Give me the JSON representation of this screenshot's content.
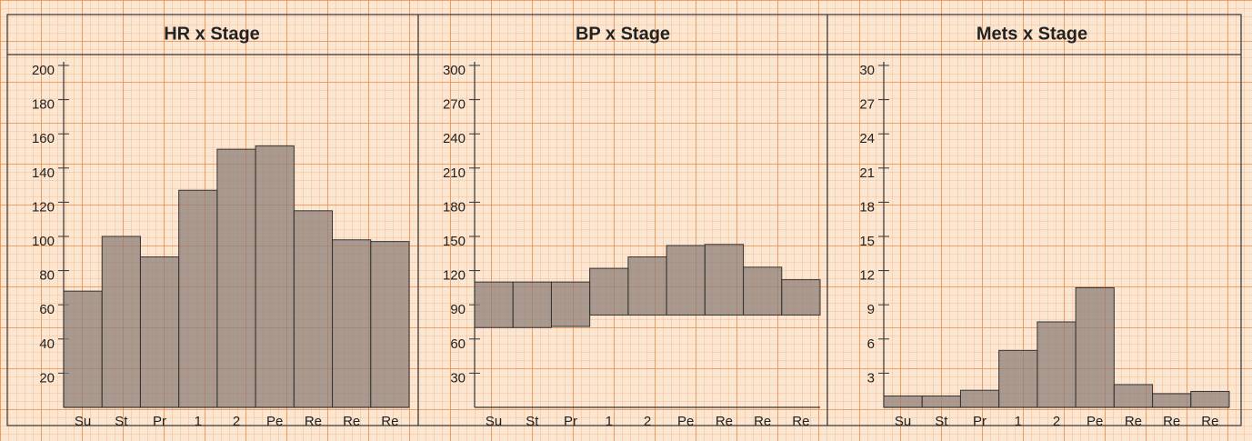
{
  "chart_data": [
    {
      "type": "bar",
      "title": "HR x Stage",
      "categories": [
        "Su",
        "St",
        "Pr",
        "1",
        "2",
        "Pe",
        "Re",
        "Re",
        "Re"
      ],
      "values": [
        68,
        100,
        88,
        127,
        151,
        153,
        115,
        98,
        97
      ],
      "color": "#8f7f78",
      "ylim": [
        0,
        200
      ],
      "yticks": [
        20,
        40,
        60,
        80,
        100,
        120,
        140,
        160,
        180,
        200
      ],
      "grid": true
    },
    {
      "type": "floating-bar",
      "title": "BP x Stage",
      "categories": [
        "Su",
        "St",
        "Pr",
        "1",
        "2",
        "Pe",
        "Re",
        "Re",
        "Re"
      ],
      "low": [
        70,
        70,
        71,
        81,
        81,
        81,
        81,
        81,
        81
      ],
      "high": [
        110,
        110,
        110,
        122,
        132,
        142,
        143,
        123,
        112
      ],
      "color": "#8f7f78",
      "ylim": [
        0,
        300
      ],
      "yticks": [
        30,
        60,
        90,
        120,
        150,
        180,
        210,
        240,
        270,
        300
      ],
      "grid": true
    },
    {
      "type": "bar",
      "title": "Mets x Stage",
      "categories": [
        "Su",
        "St",
        "Pr",
        "1",
        "2",
        "Pe",
        "Re",
        "Re",
        "Re"
      ],
      "values": [
        1,
        1,
        1.5,
        5,
        7.5,
        10.5,
        2,
        1.2,
        1.4
      ],
      "color": "#8f7f78",
      "ylim": [
        0,
        30
      ],
      "yticks": [
        3,
        6,
        9,
        12,
        15,
        18,
        21,
        24,
        27,
        30
      ],
      "grid": true
    }
  ]
}
